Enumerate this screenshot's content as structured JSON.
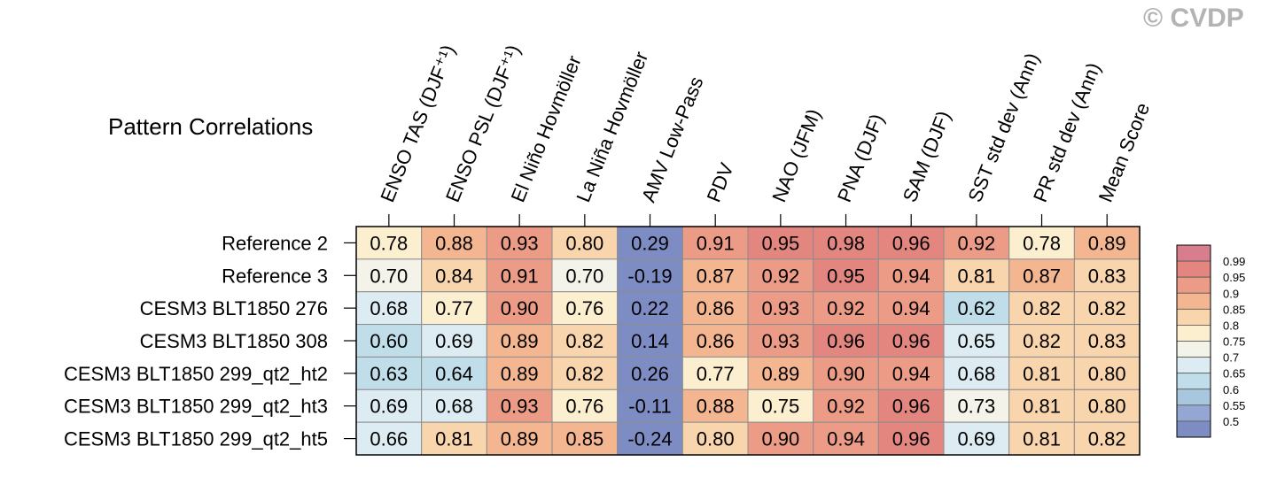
{
  "watermark": "© CVDP",
  "chart_data": {
    "type": "heatmap",
    "title": "Pattern Correlations",
    "columns": [
      "ENSO TAS (DJF⁺¹)",
      "ENSO PSL (DJF⁺¹)",
      "El Niño Hovmöller",
      "La Niña Hovmöller",
      "AMV Low-Pass",
      "PDV",
      "NAO (JFM)",
      "PNA (DJF)",
      "SAM (DJF)",
      "SST std dev (Ann)",
      "PR std dev (Ann)",
      "Mean Score"
    ],
    "rows": [
      "Reference 2",
      "Reference 3",
      "CESM3 BLT1850 276",
      "CESM3 BLT1850 308",
      "CESM3 BLT1850 299_qt2_ht2",
      "CESM3 BLT1850 299_qt2_ht3",
      "CESM3 BLT1850 299_qt2_ht5"
    ],
    "values": [
      [
        "0.78",
        "0.88",
        "0.93",
        "0.80",
        "0.29",
        "0.91",
        "0.95",
        "0.98",
        "0.96",
        "0.92",
        "0.78",
        "0.89"
      ],
      [
        "0.70",
        "0.84",
        "0.91",
        "0.70",
        "-0.19",
        "0.87",
        "0.92",
        "0.95",
        "0.94",
        "0.81",
        "0.87",
        "0.83"
      ],
      [
        "0.68",
        "0.77",
        "0.90",
        "0.76",
        "0.22",
        "0.86",
        "0.93",
        "0.92",
        "0.94",
        "0.62",
        "0.82",
        "0.82"
      ],
      [
        "0.60",
        "0.69",
        "0.89",
        "0.82",
        "0.14",
        "0.86",
        "0.93",
        "0.96",
        "0.96",
        "0.65",
        "0.82",
        "0.83"
      ],
      [
        "0.63",
        "0.64",
        "0.89",
        "0.82",
        "0.26",
        "0.77",
        "0.89",
        "0.90",
        "0.94",
        "0.68",
        "0.81",
        "0.80"
      ],
      [
        "0.69",
        "0.68",
        "0.93",
        "0.76",
        "-0.11",
        "0.88",
        "0.75",
        "0.92",
        "0.96",
        "0.73",
        "0.81",
        "0.80"
      ],
      [
        "0.66",
        "0.81",
        "0.89",
        "0.85",
        "-0.24",
        "0.80",
        "0.90",
        "0.94",
        "0.96",
        "0.69",
        "0.81",
        "0.82"
      ]
    ],
    "colorbar": {
      "levels": [
        "0.99",
        "0.95",
        "0.9",
        "0.85",
        "0.8",
        "0.75",
        "0.7",
        "0.65",
        "0.6",
        "0.55",
        "0.5"
      ],
      "thresholds": [
        0.99,
        0.95,
        0.9,
        0.85,
        0.8,
        0.75,
        0.7,
        0.65,
        0.6,
        0.55,
        0.5
      ],
      "colors": [
        "#d87d8d",
        "#e38680",
        "#ec9b87",
        "#f4b691",
        "#f8d5ac",
        "#fcefcf",
        "#f3f3e9",
        "#dcecf2",
        "#c0deea",
        "#a8c6dd",
        "#94a7d2",
        "#7e8cc4"
      ]
    }
  }
}
